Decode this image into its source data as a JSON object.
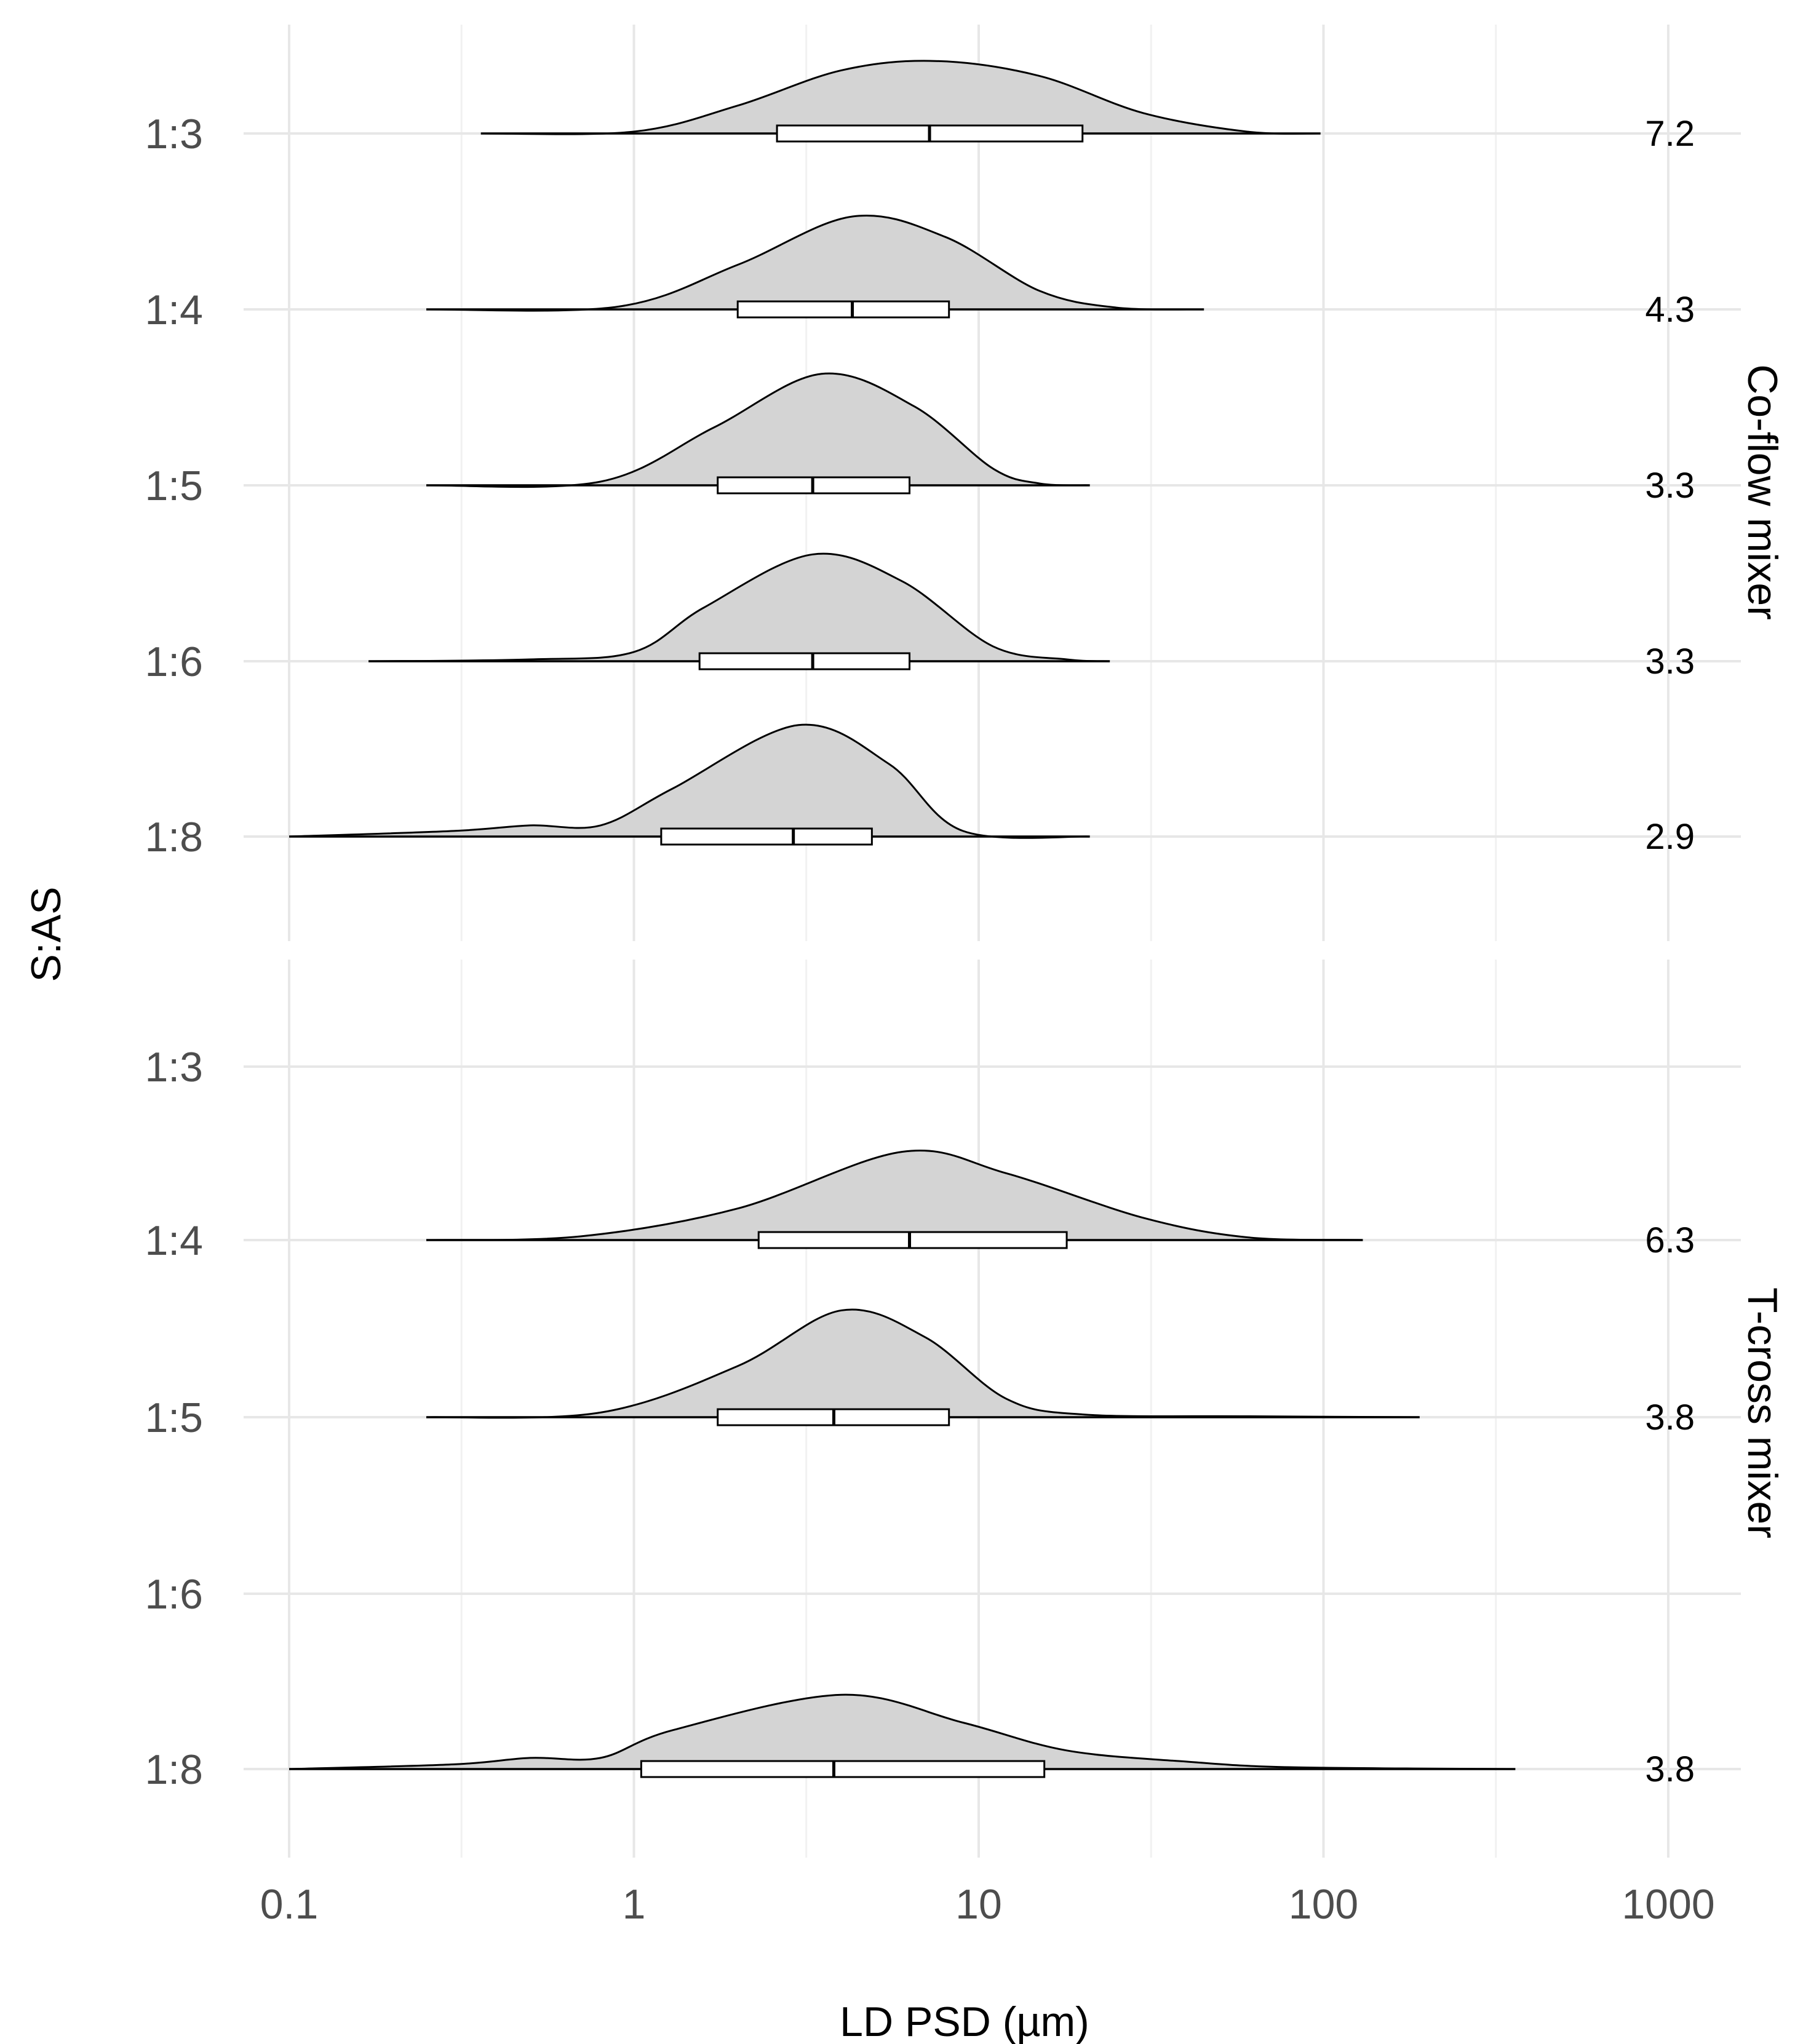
{
  "chart_data": {
    "type": "violin-boxplot",
    "xlabel": "LD PSD (µm)",
    "ylabel": "S:AS",
    "xscale": "log10",
    "xlim": [
      0.1,
      1000
    ],
    "x_ticks": [
      {
        "value": 0.1,
        "label": "0.1"
      },
      {
        "value": 1,
        "label": "1"
      },
      {
        "value": 10,
        "label": "10"
      },
      {
        "value": 100,
        "label": "100"
      },
      {
        "value": 1000,
        "label": "1000"
      }
    ],
    "y_categories": [
      "1:3",
      "1:4",
      "1:5",
      "1:6",
      "1:8"
    ],
    "panels": [
      {
        "name": "Co-flow mixer",
        "rows": [
          {
            "ratio": "1:3",
            "median_label": "7.2",
            "min": 0.36,
            "q1": 2.6,
            "median": 7.2,
            "q3": 20,
            "max": 98,
            "mode": 7.5,
            "peak_height": 0.78,
            "density": [
              [
                0.36,
                0
              ],
              [
                1,
                0.02
              ],
              [
                2,
                0.3
              ],
              [
                4,
                0.68
              ],
              [
                7.5,
                0.78
              ],
              [
                15,
                0.62
              ],
              [
                30,
                0.22
              ],
              [
                60,
                0.02
              ],
              [
                98,
                0
              ]
            ]
          },
          {
            "ratio": "1:4",
            "median_label": "4.3",
            "min": 0.25,
            "q1": 2.0,
            "median": 4.3,
            "q3": 8.2,
            "max": 45,
            "mode": 4.3,
            "peak_height": 1.0,
            "density": [
              [
                0.25,
                0
              ],
              [
                0.9,
                0.03
              ],
              [
                2,
                0.48
              ],
              [
                4.3,
                1.0
              ],
              [
                8,
                0.78
              ],
              [
                15,
                0.2
              ],
              [
                25,
                0.02
              ],
              [
                45,
                0
              ]
            ]
          },
          {
            "ratio": "1:5",
            "median_label": "3.3",
            "min": 0.25,
            "q1": 1.75,
            "median": 3.3,
            "q3": 6.3,
            "max": 21,
            "mode": 3.5,
            "peak_height": 1.2,
            "density": [
              [
                0.25,
                0
              ],
              [
                0.8,
                0.04
              ],
              [
                1.7,
                0.62
              ],
              [
                3.5,
                1.2
              ],
              [
                6.5,
                0.85
              ],
              [
                11,
                0.18
              ],
              [
                15,
                0.02
              ],
              [
                21,
                0
              ]
            ]
          },
          {
            "ratio": "1:6",
            "median_label": "3.3",
            "min": 0.17,
            "q1": 1.55,
            "median": 3.3,
            "q3": 6.3,
            "max": 24,
            "mode": 3.3,
            "peak_height": 1.15,
            "density": [
              [
                0.17,
                0
              ],
              [
                0.5,
                0.02
              ],
              [
                1,
                0.1
              ],
              [
                1.6,
                0.58
              ],
              [
                3.3,
                1.15
              ],
              [
                6,
                0.86
              ],
              [
                11,
                0.16
              ],
              [
                18,
                0.02
              ],
              [
                24,
                0
              ]
            ]
          },
          {
            "ratio": "1:8",
            "median_label": "2.9",
            "min": 0.1,
            "q1": 1.2,
            "median": 2.9,
            "q3": 4.9,
            "max": 21,
            "mode": 3.0,
            "peak_height": 1.2,
            "density": [
              [
                0.1,
                0
              ],
              [
                0.3,
                0.06
              ],
              [
                0.5,
                0.12
              ],
              [
                0.8,
                0.12
              ],
              [
                1.3,
                0.52
              ],
              [
                3,
                1.2
              ],
              [
                5.5,
                0.78
              ],
              [
                9,
                0.06
              ],
              [
                21,
                0
              ]
            ]
          }
        ]
      },
      {
        "name": "T-cross mixer",
        "rows": [
          {
            "ratio": "1:3",
            "median_label": ""
          },
          {
            "ratio": "1:4",
            "median_label": "6.3",
            "min": 0.25,
            "q1": 2.3,
            "median": 6.3,
            "q3": 18,
            "max": 130,
            "mode": 6.0,
            "peak_height": 0.95,
            "density": [
              [
                0.25,
                0
              ],
              [
                0.7,
                0.04
              ],
              [
                2,
                0.34
              ],
              [
                6,
                0.95
              ],
              [
                12,
                0.72
              ],
              [
                30,
                0.24
              ],
              [
                60,
                0.03
              ],
              [
                130,
                0
              ]
            ]
          },
          {
            "ratio": "1:5",
            "median_label": "3.8",
            "min": 0.25,
            "q1": 1.75,
            "median": 3.8,
            "q3": 8.2,
            "max": 190,
            "mode": 4.0,
            "peak_height": 1.15,
            "density": [
              [
                0.25,
                0
              ],
              [
                0.8,
                0.05
              ],
              [
                2,
                0.55
              ],
              [
                4,
                1.15
              ],
              [
                7,
                0.86
              ],
              [
                12,
                0.2
              ],
              [
                20,
                0.03
              ],
              [
                60,
                0.01
              ],
              [
                190,
                0
              ]
            ]
          },
          {
            "ratio": "1:6",
            "median_label": ""
          },
          {
            "ratio": "1:8",
            "median_label": "3.8",
            "min": 0.1,
            "q1": 1.05,
            "median": 3.8,
            "q3": 15.5,
            "max": 360,
            "mode": 4.0,
            "peak_height": 0.8,
            "density": [
              [
                0.1,
                0
              ],
              [
                0.3,
                0.05
              ],
              [
                0.5,
                0.12
              ],
              [
                0.8,
                0.12
              ],
              [
                1.3,
                0.42
              ],
              [
                4,
                0.8
              ],
              [
                9,
                0.5
              ],
              [
                18,
                0.2
              ],
              [
                40,
                0.08
              ],
              [
                80,
                0.02
              ],
              [
                360,
                0
              ]
            ]
          }
        ]
      }
    ]
  }
}
